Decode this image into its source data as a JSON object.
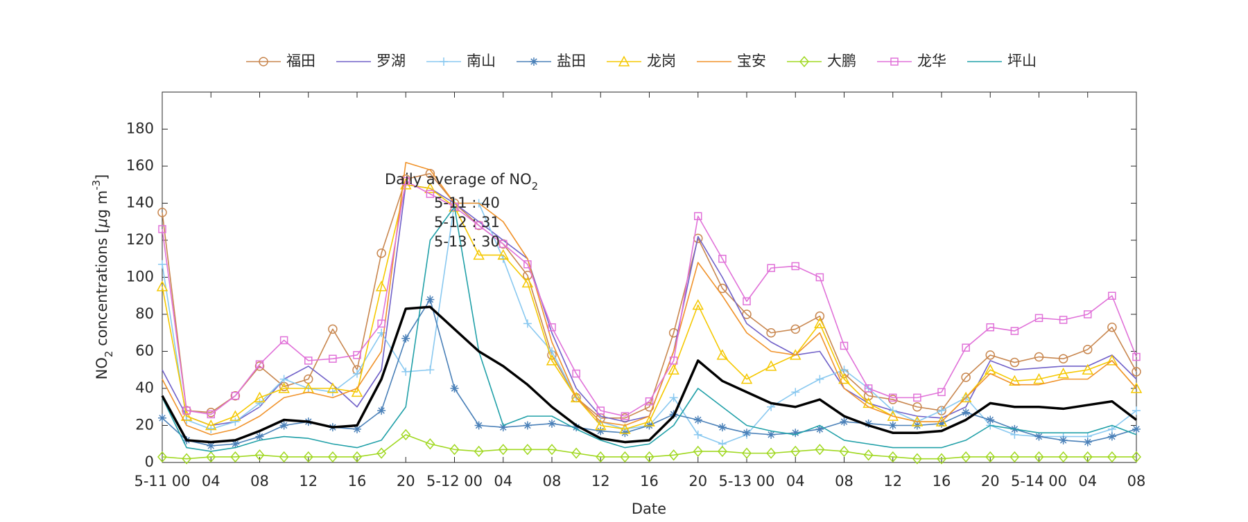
{
  "chart_data": {
    "type": "line",
    "x_label": "Date",
    "y_label": [
      "NO",
      "2",
      " concentrations [",
      "μ",
      "g m",
      "-3",
      "]"
    ],
    "annotation": {
      "text": [
        "Daily average of NO",
        "2"
      ],
      "lines": [
        "5-11 : 40",
        "5-12 : 31",
        "5-13 : 30"
      ]
    },
    "x": [
      0,
      2,
      4,
      6,
      8,
      10,
      12,
      14,
      16,
      18,
      20,
      22,
      24,
      26,
      28,
      30,
      32,
      34,
      36,
      38,
      40,
      42,
      44,
      46,
      48,
      50,
      52,
      54,
      56,
      58,
      60,
      62,
      64,
      66,
      68,
      70,
      72,
      74,
      76,
      78,
      80
    ],
    "xlim": [
      0,
      80
    ],
    "xticks": [
      {
        "value": 0,
        "label": "5-11 00"
      },
      {
        "value": 4,
        "label": "04"
      },
      {
        "value": 8,
        "label": "08"
      },
      {
        "value": 12,
        "label": "12"
      },
      {
        "value": 16,
        "label": "16"
      },
      {
        "value": 20,
        "label": "20"
      },
      {
        "value": 24,
        "label": "5-12 00"
      },
      {
        "value": 28,
        "label": "04"
      },
      {
        "value": 32,
        "label": "08"
      },
      {
        "value": 36,
        "label": "12"
      },
      {
        "value": 40,
        "label": "16"
      },
      {
        "value": 44,
        "label": "20"
      },
      {
        "value": 48,
        "label": "5-13 00"
      },
      {
        "value": 52,
        "label": "04"
      },
      {
        "value": 56,
        "label": "08"
      },
      {
        "value": 60,
        "label": "12"
      },
      {
        "value": 64,
        "label": "16"
      },
      {
        "value": 68,
        "label": "20"
      },
      {
        "value": 72,
        "label": "5-14 00"
      },
      {
        "value": 76,
        "label": "04"
      },
      {
        "value": 80,
        "label": "08"
      }
    ],
    "ylim": [
      0,
      200
    ],
    "yticks": [
      0,
      20,
      40,
      60,
      80,
      100,
      120,
      140,
      160,
      180
    ],
    "legend": "top",
    "series": [
      {
        "name": "福田",
        "color": "#c8864e",
        "marker": "circle",
        "values": [
          135,
          28,
          27,
          36,
          52,
          41,
          45,
          72,
          50,
          113,
          153,
          156,
          140,
          128,
          118,
          101,
          58,
          35,
          24,
          24,
          30,
          70,
          121,
          94,
          80,
          70,
          72,
          79,
          48,
          36,
          34,
          30,
          28,
          46,
          58,
          54,
          57,
          56,
          61,
          73,
          49
        ]
      },
      {
        "name": "罗湖",
        "color": "#7060c8",
        "marker": "none",
        "values": [
          50,
          25,
          20,
          22,
          30,
          45,
          52,
          42,
          30,
          50,
          150,
          148,
          140,
          130,
          120,
          110,
          70,
          40,
          25,
          22,
          25,
          60,
          122,
          100,
          75,
          65,
          58,
          60,
          40,
          32,
          28,
          25,
          24,
          30,
          55,
          50,
          51,
          52,
          52,
          58,
          45
        ]
      },
      {
        "name": "南山",
        "color": "#88c8f0",
        "marker": "plus",
        "values": [
          107,
          23,
          18,
          22,
          32,
          45,
          40,
          38,
          48,
          70,
          49,
          50,
          140,
          140,
          110,
          75,
          60,
          35,
          22,
          18,
          20,
          35,
          15,
          10,
          15,
          30,
          38,
          45,
          50,
          40,
          28,
          22,
          28,
          35,
          20,
          15,
          14,
          14,
          14,
          18,
          28
        ]
      },
      {
        "name": "盐田",
        "color": "#4a80b8",
        "marker": "asterisk",
        "values": [
          24,
          12,
          9,
          10,
          14,
          20,
          22,
          19,
          18,
          28,
          67,
          88,
          40,
          20,
          19,
          20,
          21,
          19,
          17,
          16,
          20,
          26,
          23,
          19,
          16,
          15,
          16,
          18,
          22,
          21,
          20,
          20,
          21,
          27,
          23,
          18,
          14,
          12,
          11,
          14,
          18
        ]
      },
      {
        "name": "龙岗",
        "color": "#f5c800",
        "marker": "triangle",
        "values": [
          95,
          25,
          20,
          25,
          35,
          40,
          40,
          40,
          38,
          95,
          150,
          148,
          138,
          112,
          112,
          97,
          55,
          35,
          20,
          18,
          22,
          50,
          85,
          58,
          45,
          52,
          58,
          75,
          45,
          32,
          25,
          22,
          22,
          35,
          50,
          44,
          45,
          48,
          50,
          55,
          40
        ]
      },
      {
        "name": "宝安",
        "color": "#f0922a",
        "marker": "none",
        "values": [
          45,
          20,
          15,
          18,
          25,
          35,
          38,
          35,
          40,
          60,
          162,
          158,
          140,
          140,
          130,
          110,
          65,
          35,
          22,
          20,
          25,
          60,
          108,
          90,
          70,
          60,
          58,
          70,
          40,
          30,
          25,
          22,
          22,
          35,
          48,
          42,
          42,
          45,
          45,
          55,
          40
        ]
      },
      {
        "name": "大鹏",
        "color": "#a0d820",
        "marker": "diamond",
        "values": [
          3,
          2,
          3,
          3,
          4,
          3,
          3,
          3,
          3,
          5,
          15,
          10,
          7,
          6,
          7,
          7,
          7,
          5,
          3,
          3,
          3,
          4,
          6,
          6,
          5,
          5,
          6,
          7,
          6,
          4,
          3,
          2,
          2,
          3,
          3,
          3,
          3,
          3,
          3,
          3,
          3
        ]
      },
      {
        "name": "龙华",
        "color": "#e070d8",
        "marker": "square",
        "values": [
          126,
          28,
          26,
          36,
          53,
          66,
          55,
          56,
          58,
          75,
          152,
          145,
          138,
          128,
          118,
          107,
          73,
          48,
          28,
          25,
          33,
          55,
          133,
          110,
          87,
          105,
          106,
          100,
          63,
          40,
          35,
          35,
          38,
          62,
          73,
          71,
          78,
          77,
          80,
          90,
          57
        ]
      },
      {
        "name": "坪山",
        "color": "#20a0a8",
        "marker": "none",
        "values": [
          35,
          8,
          6,
          8,
          12,
          14,
          13,
          10,
          8,
          12,
          30,
          120,
          138,
          60,
          20,
          25,
          25,
          18,
          12,
          8,
          10,
          20,
          40,
          30,
          20,
          17,
          15,
          20,
          12,
          10,
          8,
          8,
          8,
          12,
          20,
          18,
          16,
          16,
          16,
          20,
          15
        ]
      },
      {
        "color": "#000000",
        "line_width": 3.5,
        "marker": "none",
        "values": [
          36,
          12,
          11,
          12,
          17,
          23,
          22,
          19,
          20,
          45,
          83,
          84,
          72,
          60,
          52,
          42,
          30,
          20,
          13,
          11,
          12,
          25,
          55,
          44,
          38,
          32,
          30,
          34,
          25,
          20,
          16,
          16,
          17,
          23,
          32,
          30,
          30,
          29,
          31,
          33,
          23
        ]
      }
    ]
  }
}
